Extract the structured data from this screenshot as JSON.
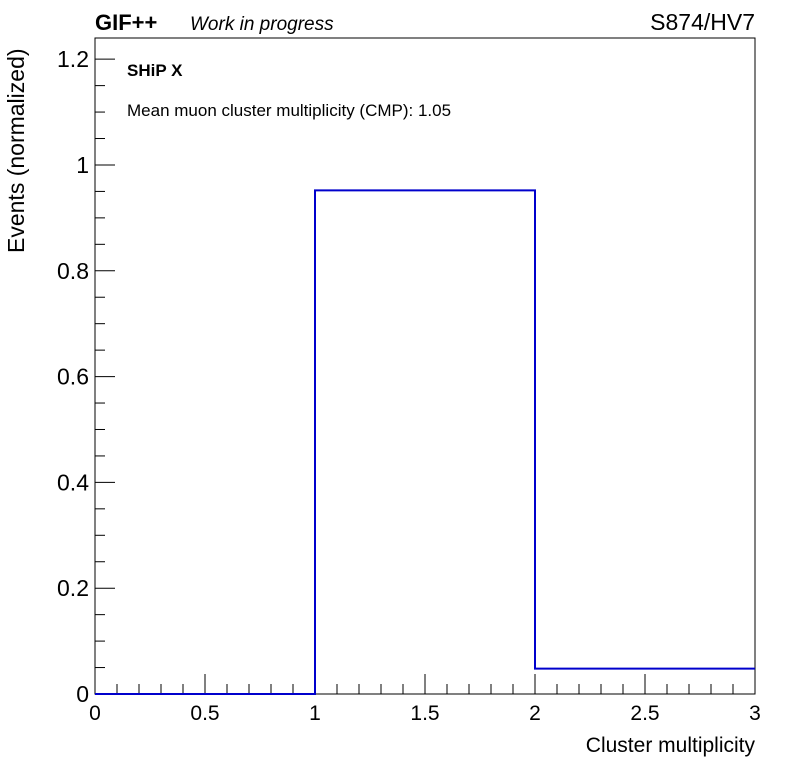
{
  "header": {
    "brand": "GIF++",
    "status": "Work in progress",
    "run_label": "S874/HV7"
  },
  "annotations": {
    "experiment": "SHiP X",
    "mean_text": "Mean muon cluster multiplicity (CMP): 1.05"
  },
  "chart_data": {
    "type": "bar",
    "histogram": true,
    "bin_edges": [
      0,
      1,
      2,
      3
    ],
    "values": [
      0.0,
      0.952,
      0.048
    ],
    "xlabel": "Cluster multiplicity",
    "ylabel": "Events (normalized)",
    "xlim": [
      0,
      3
    ],
    "ylim": [
      0,
      1.24
    ],
    "x_ticks": [
      "0",
      "0.5",
      "1",
      "1.5",
      "2",
      "2.5",
      "3"
    ],
    "y_ticks": [
      "0",
      "0.2",
      "0.4",
      "0.6",
      "0.8",
      "1",
      "1.2"
    ],
    "line_color": "#0000cc",
    "grid": false
  }
}
